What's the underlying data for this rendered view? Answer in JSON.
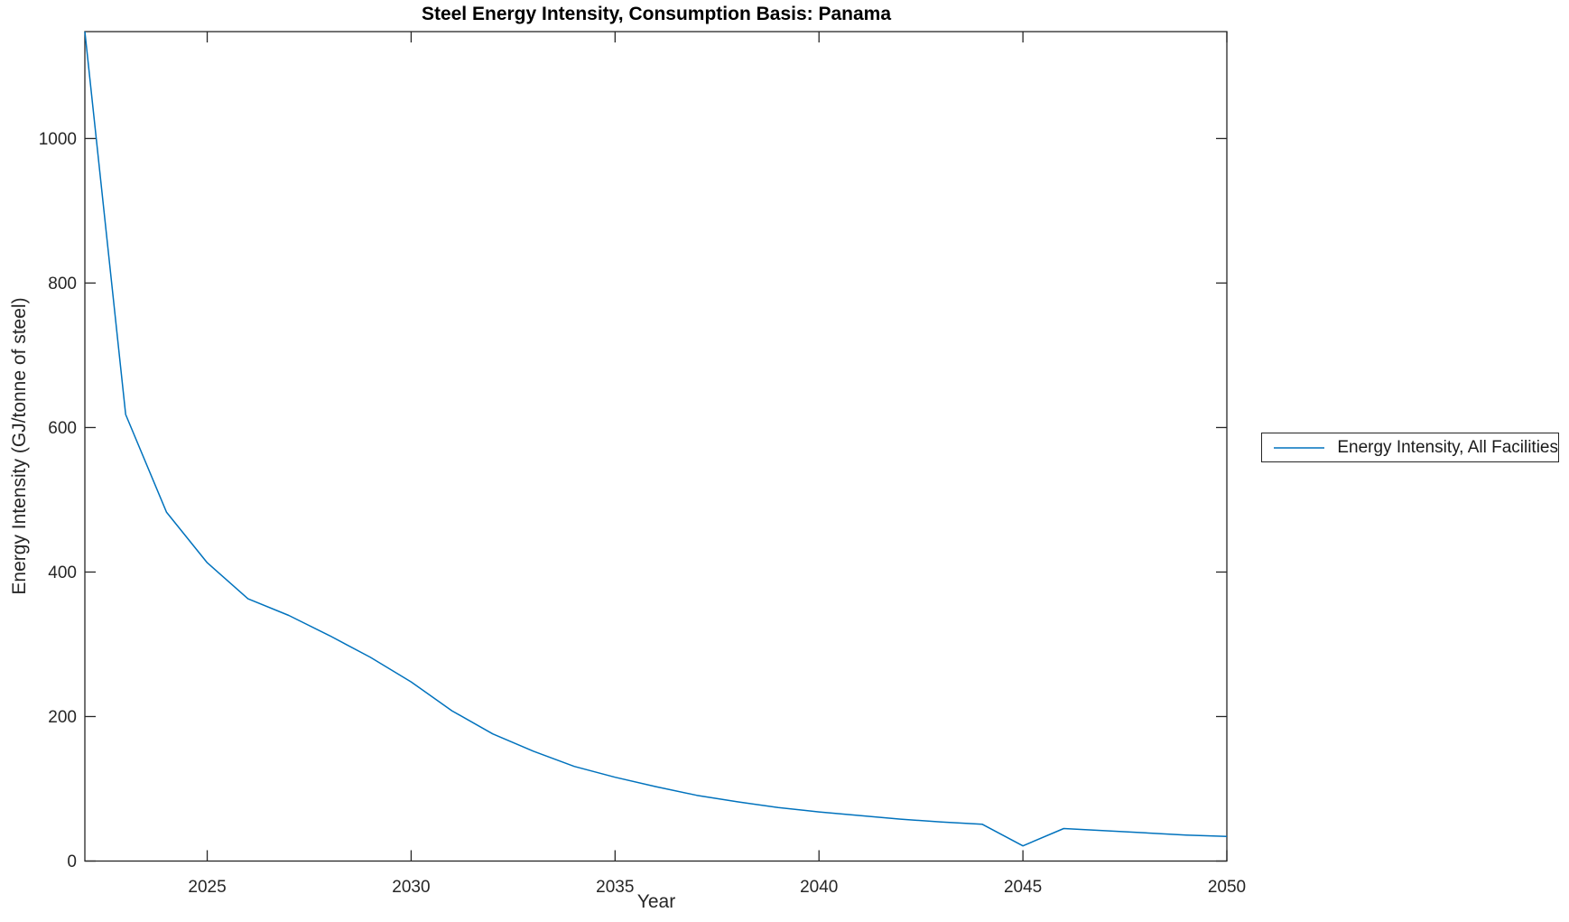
{
  "figure": {
    "title": "Steel Energy Intensity, Consumption Basis: Panama",
    "xlabel": "Year",
    "ylabel": "Energy Intensity (GJ/tonne of steel)"
  },
  "legend": {
    "entries": [
      {
        "label": "Energy Intensity, All Facilities",
        "color": "#0072BD"
      }
    ]
  },
  "colors": {
    "line": "#0072BD",
    "axis": "#262626",
    "title": "#000000",
    "background": "#ffffff"
  },
  "chart_data": {
    "type": "line",
    "title": "Steel Energy Intensity, Consumption Basis: Panama",
    "xlabel": "Year",
    "ylabel": "Energy Intensity (GJ/tonne of steel)",
    "x_range": [
      2022,
      2050
    ],
    "y_range": [
      0,
      1148
    ],
    "x_ticks": [
      2025,
      2030,
      2035,
      2040,
      2045,
      2050
    ],
    "y_ticks": [
      0,
      200,
      400,
      600,
      800,
      1000
    ],
    "grid": false,
    "legend_position": "right-outside",
    "axis_color": "#262626",
    "line_color": "#0072BD",
    "series": [
      {
        "name": "Energy Intensity, All Facilities",
        "x": [
          2022,
          2023,
          2024,
          2025,
          2026,
          2027,
          2028,
          2029,
          2030,
          2031,
          2032,
          2033,
          2034,
          2035,
          2036,
          2037,
          2038,
          2039,
          2040,
          2041,
          2042,
          2043,
          2044,
          2045,
          2046,
          2047,
          2048,
          2049,
          2050
        ],
        "values": [
          1148,
          618,
          483,
          413,
          363,
          340,
          312,
          282,
          248,
          208,
          176,
          152,
          131,
          116,
          103,
          91,
          82,
          74,
          68,
          63,
          58,
          54,
          51,
          21,
          45,
          42,
          39,
          36,
          34
        ]
      }
    ]
  }
}
